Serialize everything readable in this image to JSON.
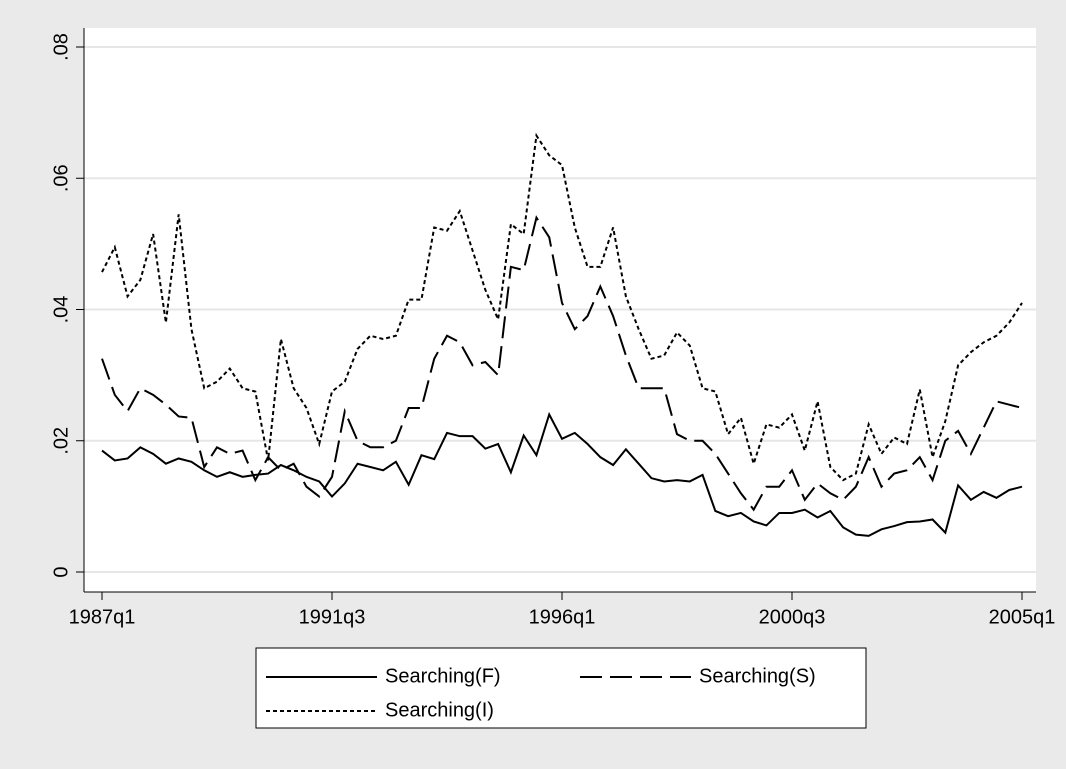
{
  "chart_data": {
    "type": "line",
    "categories": [
      "1987q1",
      null,
      null,
      null,
      null,
      null,
      null,
      null,
      null,
      null,
      null,
      null,
      null,
      null,
      null,
      null,
      null,
      null,
      "1991q3",
      null,
      null,
      null,
      null,
      null,
      null,
      null,
      null,
      null,
      null,
      null,
      null,
      null,
      null,
      null,
      null,
      null,
      "1996q1",
      null,
      null,
      null,
      null,
      null,
      null,
      null,
      null,
      null,
      null,
      null,
      null,
      null,
      null,
      null,
      null,
      null,
      "2000q3",
      null,
      null,
      null,
      null,
      null,
      null,
      null,
      null,
      null,
      null,
      null,
      null,
      null,
      null,
      null,
      null,
      null,
      "2005q1"
    ],
    "series": [
      {
        "name": "Searching(F)",
        "color": "#000000",
        "line_style": "solid",
        "values": [
          0.0185,
          0.017,
          0.0173,
          0.019,
          0.018,
          0.0165,
          0.0173,
          0.0168,
          0.0155,
          0.0145,
          0.0152,
          0.0145,
          0.0148,
          0.015,
          0.0163,
          0.0155,
          0.0145,
          0.0138,
          0.0115,
          0.0135,
          0.0165,
          0.016,
          0.0155,
          0.0168,
          0.0133,
          0.0178,
          0.0172,
          0.0212,
          0.0207,
          0.0207,
          0.0188,
          0.0195,
          0.0152,
          0.0208,
          0.0178,
          0.024,
          0.0203,
          0.0212,
          0.0195,
          0.0175,
          0.0163,
          0.0187,
          0.0165,
          0.0143,
          0.0138,
          0.014,
          0.0138,
          0.0148,
          0.0093,
          0.0085,
          0.009,
          0.0077,
          0.0071,
          0.009,
          0.009,
          0.0095,
          0.0083,
          0.0093,
          0.0068,
          0.0057,
          0.0055,
          0.0065,
          0.007,
          0.0076,
          0.0077,
          0.008,
          0.006,
          0.0132,
          0.011,
          0.0122,
          0.0113,
          0.0125,
          0.013
        ]
      },
      {
        "name": "Searching(S)",
        "color": "#000000",
        "line_style": "dashed",
        "values": [
          0.0325,
          0.027,
          0.0245,
          0.028,
          0.027,
          0.0255,
          0.0237,
          0.0235,
          0.016,
          0.019,
          0.018,
          0.0185,
          0.014,
          0.0175,
          0.0155,
          0.0165,
          0.013,
          0.0115,
          0.0145,
          0.0245,
          0.02,
          0.019,
          0.019,
          0.02,
          0.025,
          0.025,
          0.0325,
          0.036,
          0.035,
          0.0315,
          0.032,
          0.03,
          0.0465,
          0.046,
          0.054,
          0.051,
          0.041,
          0.037,
          0.039,
          0.0435,
          0.039,
          0.033,
          0.028,
          0.028,
          0.028,
          0.021,
          0.02,
          0.02,
          0.018,
          0.015,
          0.012,
          0.0095,
          0.013,
          0.013,
          0.0155,
          0.011,
          0.0135,
          0.012,
          0.011,
          0.013,
          0.0175,
          0.013,
          0.015,
          0.0155,
          0.0175,
          0.014,
          0.02,
          0.0215,
          0.018,
          0.022,
          0.026,
          0.0255,
          0.025
        ]
      },
      {
        "name": "Searching(I)",
        "color": "#000000",
        "line_style": "dotted",
        "values": [
          0.0457,
          0.0495,
          0.042,
          0.0445,
          0.0515,
          0.038,
          0.0545,
          0.037,
          0.028,
          0.029,
          0.031,
          0.028,
          0.0275,
          0.017,
          0.0355,
          0.028,
          0.025,
          0.0195,
          0.0275,
          0.029,
          0.034,
          0.036,
          0.0355,
          0.036,
          0.0415,
          0.0415,
          0.0525,
          0.052,
          0.055,
          0.049,
          0.043,
          0.0385,
          0.053,
          0.0515,
          0.0665,
          0.0635,
          0.062,
          0.0525,
          0.0465,
          0.0465,
          0.0525,
          0.042,
          0.037,
          0.0325,
          0.033,
          0.0365,
          0.0345,
          0.028,
          0.0275,
          0.021,
          0.0235,
          0.0165,
          0.0225,
          0.022,
          0.024,
          0.0185,
          0.026,
          0.016,
          0.014,
          0.015,
          0.0225,
          0.018,
          0.0205,
          0.0195,
          0.0278,
          0.0175,
          0.023,
          0.0315,
          0.0335,
          0.035,
          0.036,
          0.038,
          0.041
        ]
      }
    ],
    "ylim": [
      0,
      0.08
    ],
    "yticks": [
      {
        "value": 0,
        "label": "0"
      },
      {
        "value": 0.02,
        "label": ".02"
      },
      {
        "value": 0.04,
        "label": ".04"
      },
      {
        "value": 0.06,
        "label": ".06"
      },
      {
        "value": 0.08,
        "label": ".08"
      }
    ],
    "grid": true
  }
}
